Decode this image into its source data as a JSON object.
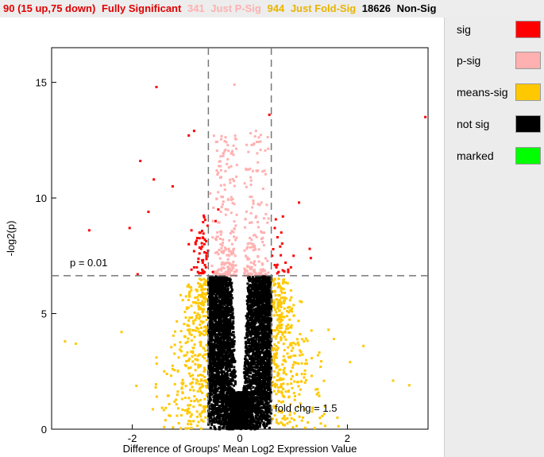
{
  "status": {
    "full_count": "90 (15 up,75 down)",
    "full_label": "Fully Significant",
    "psig_count": "341",
    "psig_label": "Just P-Sig",
    "fold_count": "944",
    "fold_label": "Just Fold-Sig",
    "nonsig_count": "18626",
    "nonsig_label": "Non-Sig"
  },
  "legend": {
    "items": [
      {
        "label": "sig",
        "color": "#ff0000"
      },
      {
        "label": "p-sig",
        "color": "#ffb0b0"
      },
      {
        "label": "means-sig",
        "color": "#ffc800"
      },
      {
        "label": "not sig",
        "color": "#000000"
      },
      {
        "label": "marked",
        "color": "#00ff00"
      }
    ]
  },
  "chart_data": {
    "type": "scatter",
    "xlabel": "Difference of Groups' Mean Log2 Expression Value",
    "ylabel": "-log2(p)",
    "xlim": [
      -3.5,
      3.5
    ],
    "ylim": [
      0,
      16.5
    ],
    "xticks": [
      -2,
      0,
      2
    ],
    "xtick_labels": [
      "-2",
      "0",
      "2"
    ],
    "yticks": [
      0,
      5,
      10,
      15
    ],
    "ytick_labels": [
      "0",
      "5",
      "10",
      "15"
    ],
    "thresholds": {
      "p_line_y": 6.64,
      "p_label": "p = 0.01",
      "fold_line_x": [
        -0.585,
        0.585
      ],
      "fold_label": "fold chg = 1.5"
    },
    "colors": {
      "sig": "#ff0000",
      "psig": "#ffb0b0",
      "foldsig": "#ffc800",
      "nonsig": "#000000"
    },
    "series": [
      {
        "category": "sig",
        "x": [
          3.45,
          0.55,
          -1.55,
          -0.85,
          -0.95,
          -1.6,
          -1.7,
          -1.85,
          -1.25,
          -0.4,
          -0.45,
          -0.6,
          -0.75,
          -0.65,
          -0.7,
          -0.62,
          -0.85,
          0.65,
          0.7,
          0.75,
          0.6,
          0.65,
          0.8,
          1.1,
          0.9,
          0.85,
          1.3,
          1.32,
          0.95,
          0.9,
          -0.7,
          -0.75,
          -0.8,
          -0.9,
          -0.68,
          -0.72,
          -0.66,
          -0.69,
          -0.78,
          -0.63,
          0.72,
          0.68,
          1.0,
          -0.9,
          -2.05,
          -2.8,
          -1.9,
          -0.5,
          -0.95,
          -0.85,
          -0.62,
          -0.65,
          -0.7
        ],
        "y": [
          13.5,
          13.6,
          14.8,
          12.9,
          12.7,
          10.8,
          9.4,
          11.6,
          10.5,
          9.5,
          9.0,
          8.8,
          8.5,
          8.2,
          7.9,
          7.5,
          7.0,
          8.7,
          8.3,
          7.9,
          7.5,
          7.1,
          9.2,
          9.8,
          6.9,
          7.2,
          7.8,
          7.4,
          7.0,
          6.8,
          7.3,
          7.6,
          7.0,
          6.9,
          6.75,
          7.8,
          8.0,
          7.2,
          6.8,
          7.0,
          6.8,
          7.0,
          7.5,
          8.6,
          8.7,
          8.6,
          6.7,
          6.8,
          8.0,
          7.7,
          7.4,
          7.1,
          6.9
        ]
      },
      {
        "category": "psig",
        "x": [
          -0.1,
          0.2,
          0.3,
          -0.55,
          -0.5,
          0.5,
          0.45,
          0.25,
          -0.2,
          -0.35
        ],
        "y": [
          14.9,
          12.8,
          12.9,
          10.2,
          9.0,
          9.7,
          8.5,
          8.0,
          7.5,
          11.2
        ]
      },
      {
        "category": "foldsig",
        "x": [
          -3.25,
          -3.05,
          -2.2,
          -1.55,
          -1.25,
          1.65,
          1.75,
          2.05,
          2.3,
          2.85,
          3.15,
          -1.1,
          -0.95,
          1.15,
          0.95
        ],
        "y": [
          3.8,
          3.7,
          4.2,
          3.1,
          2.6,
          4.3,
          3.9,
          2.9,
          3.6,
          2.1,
          1.9,
          5.8,
          6.2,
          5.5,
          6.0
        ]
      }
    ],
    "clouds": {
      "note_count_nonsig": 18626,
      "note_count_psig": 341,
      "note_count_foldsig": 944
    }
  }
}
